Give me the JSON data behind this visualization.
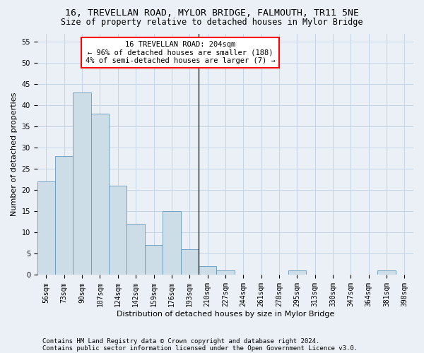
{
  "title1": "16, TREVELLAN ROAD, MYLOR BRIDGE, FALMOUTH, TR11 5NE",
  "title2": "Size of property relative to detached houses in Mylor Bridge",
  "xlabel": "Distribution of detached houses by size in Mylor Bridge",
  "ylabel": "Number of detached properties",
  "footer1": "Contains HM Land Registry data © Crown copyright and database right 2024.",
  "footer2": "Contains public sector information licensed under the Open Government Licence v3.0.",
  "annotation_line1": "16 TREVELLAN ROAD: 204sqm",
  "annotation_line2": "← 96% of detached houses are smaller (188)",
  "annotation_line3": "4% of semi-detached houses are larger (7) →",
  "bar_color": "#ccdde8",
  "bar_edge_color": "#6699bb",
  "vline_color": "#222222",
  "categories": [
    "56sqm",
    "73sqm",
    "90sqm",
    "107sqm",
    "124sqm",
    "142sqm",
    "159sqm",
    "176sqm",
    "193sqm",
    "210sqm",
    "227sqm",
    "244sqm",
    "261sqm",
    "278sqm",
    "295sqm",
    "313sqm",
    "330sqm",
    "347sqm",
    "364sqm",
    "381sqm",
    "398sqm"
  ],
  "values": [
    22,
    28,
    43,
    38,
    21,
    12,
    7,
    15,
    6,
    2,
    1,
    0,
    0,
    0,
    1,
    0,
    0,
    0,
    0,
    1,
    0
  ],
  "vline_index": 8.5,
  "ylim": [
    0,
    57
  ],
  "yticks": [
    0,
    5,
    10,
    15,
    20,
    25,
    30,
    35,
    40,
    45,
    50,
    55
  ],
  "grid_color": "#c5d5e5",
  "bg_color": "#eaf0f6",
  "title1_fontsize": 9.5,
  "title2_fontsize": 8.5,
  "annotation_fontsize": 7.5,
  "xlabel_fontsize": 8,
  "ylabel_fontsize": 8,
  "tick_fontsize": 7,
  "footer_fontsize": 6.5
}
